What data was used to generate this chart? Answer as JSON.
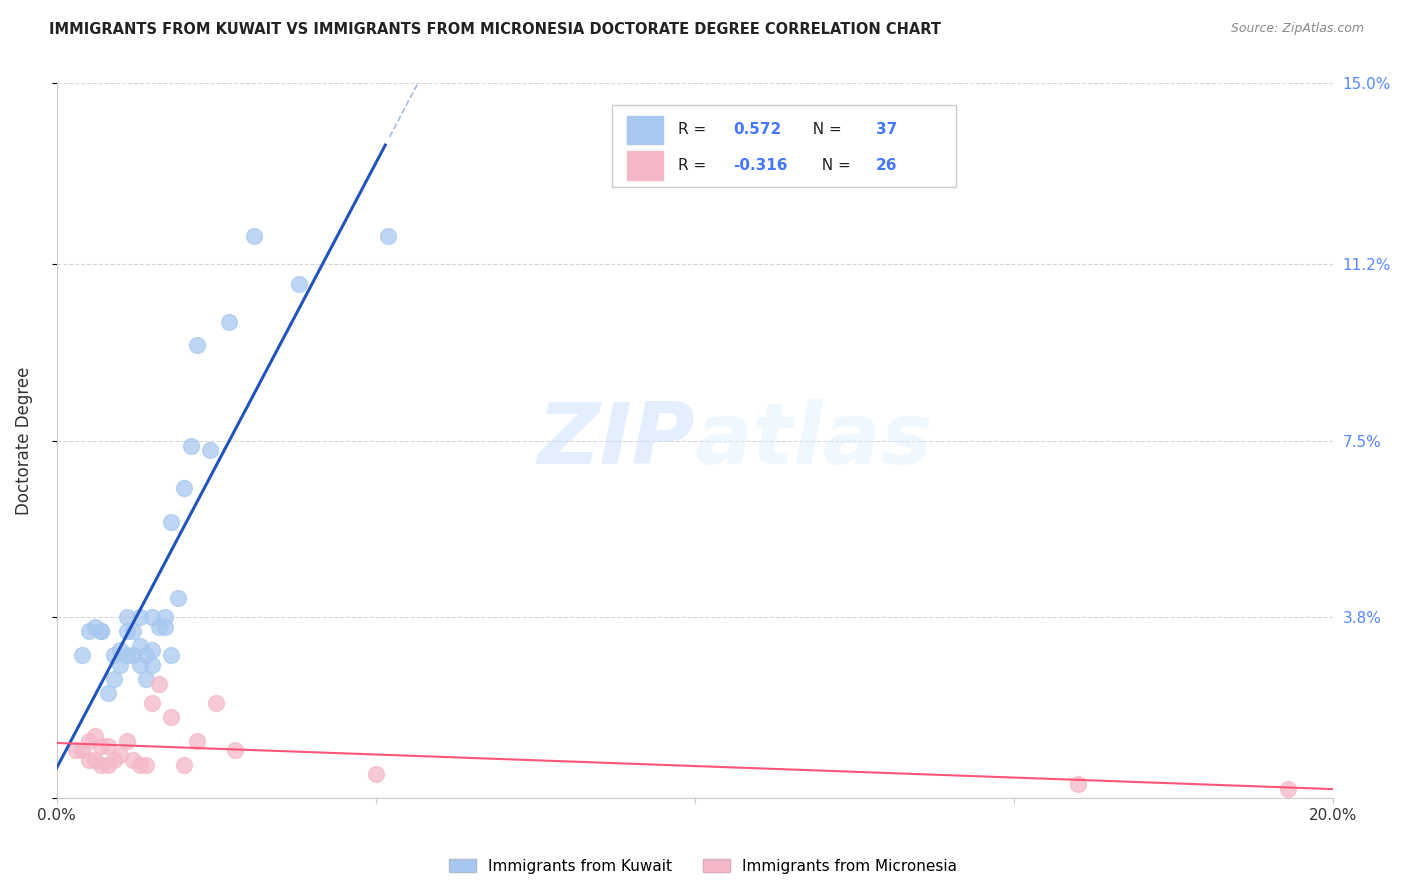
{
  "title": "IMMIGRANTS FROM KUWAIT VS IMMIGRANTS FROM MICRONESIA DOCTORATE DEGREE CORRELATION CHART",
  "source": "Source: ZipAtlas.com",
  "ylabel": "Doctorate Degree",
  "xlim": [
    0.0,
    0.2
  ],
  "ylim": [
    0.0,
    0.15
  ],
  "kuwait_color": "#a8c8f0",
  "micronesia_color": "#f4b8c8",
  "kuwait_line_color": "#2255bb",
  "micronesia_line_color": "#ff5577",
  "watermark_zip": "ZIP",
  "watermark_atlas": "atlas",
  "kuwait_R": 0.572,
  "kuwait_N": 37,
  "micronesia_R": -0.316,
  "micronesia_N": 26,
  "kuwait_points_x": [
    0.004,
    0.005,
    0.006,
    0.007,
    0.007,
    0.008,
    0.009,
    0.009,
    0.01,
    0.01,
    0.011,
    0.011,
    0.011,
    0.012,
    0.012,
    0.013,
    0.013,
    0.013,
    0.014,
    0.014,
    0.015,
    0.015,
    0.015,
    0.016,
    0.017,
    0.017,
    0.018,
    0.018,
    0.019,
    0.02,
    0.021,
    0.022,
    0.024,
    0.027,
    0.031,
    0.038,
    0.052
  ],
  "kuwait_points_y": [
    0.03,
    0.035,
    0.036,
    0.035,
    0.035,
    0.022,
    0.025,
    0.03,
    0.028,
    0.031,
    0.03,
    0.035,
    0.038,
    0.03,
    0.035,
    0.028,
    0.032,
    0.038,
    0.025,
    0.03,
    0.028,
    0.031,
    0.038,
    0.036,
    0.036,
    0.038,
    0.03,
    0.058,
    0.042,
    0.065,
    0.074,
    0.095,
    0.073,
    0.1,
    0.118,
    0.108,
    0.118
  ],
  "micronesia_points_x": [
    0.003,
    0.004,
    0.005,
    0.005,
    0.006,
    0.006,
    0.007,
    0.007,
    0.008,
    0.008,
    0.009,
    0.01,
    0.011,
    0.012,
    0.013,
    0.014,
    0.015,
    0.016,
    0.018,
    0.02,
    0.022,
    0.025,
    0.028,
    0.05,
    0.16,
    0.193
  ],
  "micronesia_points_y": [
    0.01,
    0.01,
    0.008,
    0.012,
    0.008,
    0.013,
    0.007,
    0.011,
    0.007,
    0.011,
    0.008,
    0.009,
    0.012,
    0.008,
    0.007,
    0.007,
    0.02,
    0.024,
    0.017,
    0.007,
    0.012,
    0.02,
    0.01,
    0.005,
    0.003,
    0.002
  ]
}
